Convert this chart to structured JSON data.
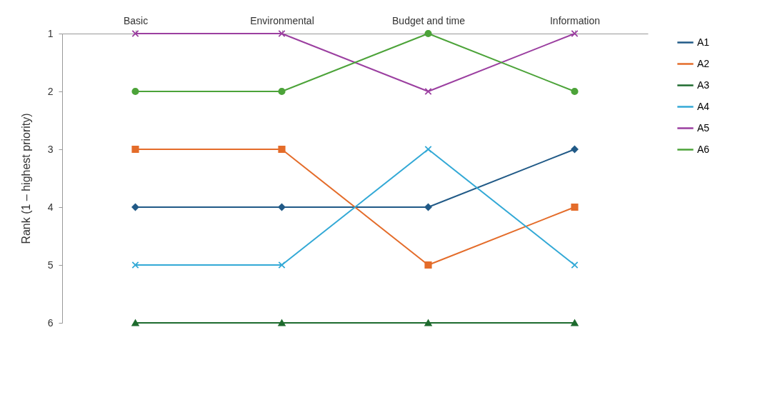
{
  "chart_data": {
    "type": "line",
    "ylabel": "Rank (1 – highest priority)",
    "categories": [
      "Basic",
      "Environmental",
      "Budget and time",
      "Information"
    ],
    "ylim": [
      6,
      1
    ],
    "yticks": [
      1,
      2,
      3,
      4,
      5,
      6
    ],
    "grid": false,
    "legend": "right",
    "series": [
      {
        "name": "A1",
        "color": "#215a87",
        "marker": "diamond",
        "values": [
          4,
          4,
          4,
          3
        ]
      },
      {
        "name": "A2",
        "color": "#e46c2a",
        "marker": "square",
        "values": [
          3,
          3,
          5,
          4
        ]
      },
      {
        "name": "A3",
        "color": "#1e6b2e",
        "marker": "triangle",
        "values": [
          6,
          6,
          6,
          6
        ]
      },
      {
        "name": "A4",
        "color": "#33a9d6",
        "marker": "cross",
        "values": [
          5,
          5,
          3,
          5
        ]
      },
      {
        "name": "A5",
        "color": "#9b3fa0",
        "marker": "cross",
        "values": [
          1,
          1,
          2,
          1
        ]
      },
      {
        "name": "A6",
        "color": "#4ca339",
        "marker": "circle",
        "values": [
          2,
          2,
          1,
          2
        ]
      }
    ]
  }
}
